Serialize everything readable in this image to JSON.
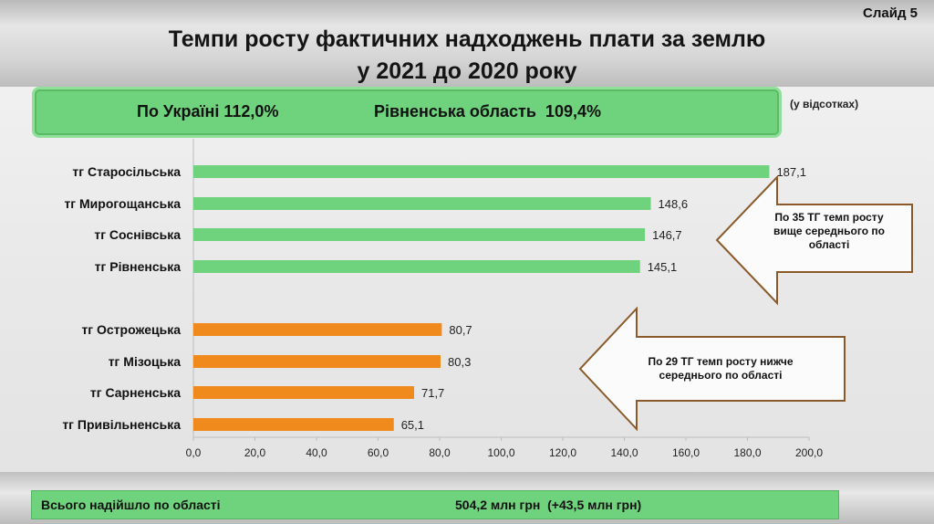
{
  "slide_label": "Слайд 5",
  "title_line1": "Темпи росту фактичних надходжень плати за землю",
  "title_line2": "у 2021 до 2020 року",
  "summary": {
    "ukraine": "По Україні 112,0%",
    "region": "Рівненська область  109,4%"
  },
  "units_note": "(у відсотках)",
  "arrow_above": "По 35 ТГ темп росту вище середнього по області",
  "arrow_below": "По 29 ТГ темп росту нижче середнього по області",
  "footer": {
    "label": "Всього надійшло по області",
    "value": "504,2 млн грн  (+43,5 млн грн)"
  },
  "colors": {
    "above": "#6fd27c",
    "below": "#f08a1c",
    "arrow_border": "#8b5a2b"
  },
  "chart_data": {
    "type": "bar",
    "orientation": "horizontal",
    "categories": [
      "тг Старосільська",
      "тг Мирогощанська",
      "тг Соснівська",
      "тг Рівненська",
      "тг Острожецька",
      "тг Мізоцька",
      "тг Сарненська",
      "тг Привільненська"
    ],
    "values": [
      187.1,
      148.6,
      146.7,
      145.1,
      80.7,
      80.3,
      71.7,
      65.1
    ],
    "value_labels": [
      "187,1",
      "148,6",
      "146,7",
      "145,1",
      "80,7",
      "80,3",
      "71,7",
      "65,1"
    ],
    "groups": [
      "above",
      "above",
      "above",
      "above",
      "below",
      "below",
      "below",
      "below"
    ],
    "xlim": [
      0,
      200
    ],
    "xticks": [
      "0,0",
      "20,0",
      "40,0",
      "60,0",
      "80,0",
      "100,0",
      "120,0",
      "140,0",
      "160,0",
      "180,0",
      "200,0"
    ],
    "grid": false,
    "legend": "none"
  }
}
